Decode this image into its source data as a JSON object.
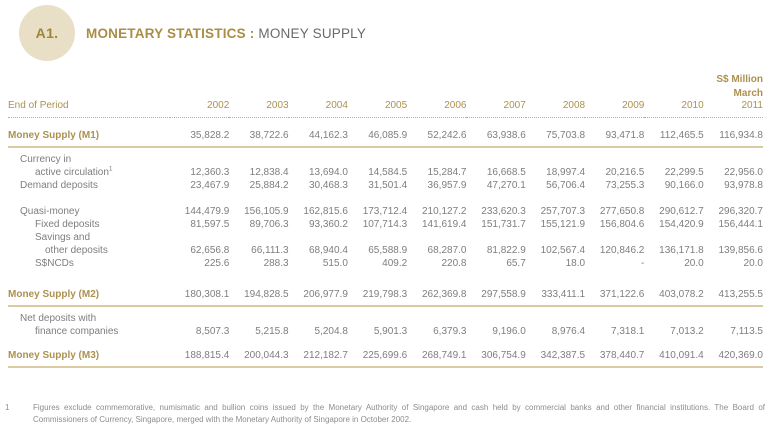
{
  "header": {
    "badge": "A1.",
    "title_bold": "MONETARY STATISTICS :",
    "title_regular": "MONEY SUPPLY"
  },
  "table": {
    "unit_label": "S$ Million",
    "unit_sublabel": "March",
    "period_label": "End of Period",
    "years": [
      "2002",
      "2003",
      "2004",
      "2005",
      "2006",
      "2007",
      "2008",
      "2009",
      "2010",
      "2011"
    ],
    "rows": [
      {
        "type": "spacer",
        "h": 12
      },
      {
        "type": "data",
        "cls": "gold",
        "rule": true,
        "indent": 0,
        "label": "Money Supply (M1)",
        "values": [
          "35,828.2",
          "38,722.6",
          "44,162.3",
          "46,085.9",
          "52,242.6",
          "63,938.6",
          "75,703.8",
          "93,471.8",
          "112,465.5",
          "116,934.8"
        ]
      },
      {
        "type": "spacer",
        "h": 6
      },
      {
        "type": "data",
        "indent": 1,
        "label": "Currency in",
        "values": []
      },
      {
        "type": "data",
        "indent": 2,
        "label": "active circulation",
        "sup": "1",
        "values": [
          "12,360.3",
          "12,838.4",
          "13,694.0",
          "14,584.5",
          "15,284.7",
          "16,668.5",
          "18,997.4",
          "20,216.5",
          "22,299.5",
          "22,956.0"
        ]
      },
      {
        "type": "data",
        "indent": 1,
        "label": "Demand deposits",
        "values": [
          "23,467.9",
          "25,884.2",
          "30,468.3",
          "31,501.4",
          "36,957.9",
          "47,270.1",
          "56,706.4",
          "73,255.3",
          "90,166.0",
          "93,978.8"
        ]
      },
      {
        "type": "spacer",
        "h": 13
      },
      {
        "type": "data",
        "indent": 1,
        "label": "Quasi-money",
        "values": [
          "144,479.9",
          "156,105.9",
          "162,815.6",
          "173,712.4",
          "210,127.2",
          "233,620.3",
          "257,707.3",
          "277,650.8",
          "290,612.7",
          "296,320.7"
        ]
      },
      {
        "type": "data",
        "indent": 2,
        "label": "Fixed deposits",
        "values": [
          "81,597.5",
          "89,706.3",
          "93,360.2",
          "107,714.3",
          "141,619.4",
          "151,731.7",
          "155,121.9",
          "156,804.6",
          "154,420.9",
          "156,444.1"
        ]
      },
      {
        "type": "data",
        "indent": 2,
        "label": "Savings and",
        "values": []
      },
      {
        "type": "data",
        "indent": 3,
        "label": "other deposits",
        "values": [
          "62,656.8",
          "66,111.3",
          "68,940.4",
          "65,588.9",
          "68,287.0",
          "81,822.9",
          "102,567.4",
          "120,846.2",
          "136,171.8",
          "139,856.6"
        ]
      },
      {
        "type": "data",
        "indent": 2,
        "label": "S$NCDs",
        "values": [
          "225.6",
          "288.3",
          "515.0",
          "409.2",
          "220.8",
          "65.7",
          "18.0",
          "-",
          "20.0",
          "20.0"
        ]
      },
      {
        "type": "spacer",
        "h": 19
      },
      {
        "type": "data",
        "cls": "gold",
        "rule": true,
        "indent": 0,
        "label": "Money Supply (M2)",
        "values": [
          "180,308.1",
          "194,828.5",
          "206,977.9",
          "219,798.3",
          "262,369.8",
          "297,558.9",
          "333,411.1",
          "371,122.6",
          "403,078.2",
          "413,255.5"
        ]
      },
      {
        "type": "spacer",
        "h": 6
      },
      {
        "type": "data",
        "indent": 1,
        "label": "Net deposits with",
        "values": []
      },
      {
        "type": "data",
        "indent": 2,
        "label": "finance companies",
        "values": [
          "8,507.3",
          "5,215.8",
          "5,204.8",
          "5,901.3",
          "6,379.3",
          "9,196.0",
          "8,976.4",
          "7,318.1",
          "7,013.2",
          "7,113.5"
        ]
      },
      {
        "type": "spacer",
        "h": 12
      },
      {
        "type": "data",
        "cls": "gold",
        "rule": true,
        "indent": 0,
        "label": "Money Supply (M3)",
        "values": [
          "188,815.4",
          "200,044.3",
          "212,182.7",
          "225,699.6",
          "268,749.1",
          "306,754.9",
          "342,387.5",
          "378,440.7",
          "410,091.4",
          "420,369.0"
        ]
      }
    ]
  },
  "footnote": {
    "marker": "1",
    "text": "Figures exclude commemorative, numismatic and bullion coins issued by the Monetary Authority of Singapore and cash held by commercial banks and other financial institutions. The Board of Commissioners of Currency, Singapore, merged with the Monetary Authority of Singapore in October 2002."
  },
  "colors": {
    "gold_text": "#ac9150",
    "badge_bg": "#e8dfc6",
    "rule_line": "#d9caa1",
    "data_text": "#7e7e7e"
  }
}
